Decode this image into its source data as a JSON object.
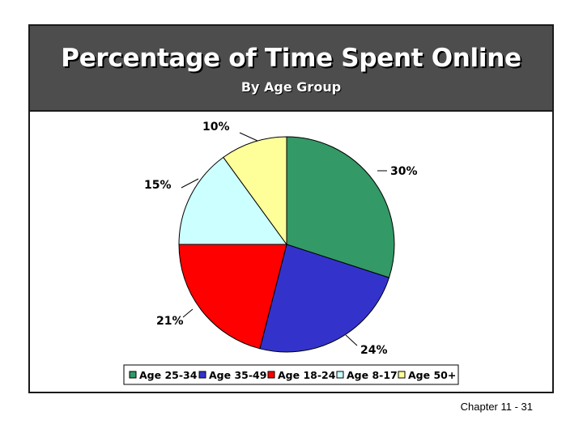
{
  "slide": {
    "title": "Percentage of Time Spent Online",
    "subtitle": "By Age Group",
    "footer": "Chapter 11 - 31"
  },
  "chart_data": {
    "type": "pie",
    "title": "Percentage of Time Spent Online",
    "subtitle": "By Age Group",
    "categories": [
      "Age 25-34",
      "Age 35-49",
      "Age 18-24",
      "Age 8-17",
      "Age 50+"
    ],
    "values": [
      30,
      24,
      21,
      15,
      10
    ],
    "labels": [
      "30%",
      "24%",
      "21%",
      "15%",
      "10%"
    ],
    "colors": [
      "#339966",
      "#3333cc",
      "#ff0000",
      "#ccffff",
      "#ffff99"
    ],
    "legend_position": "bottom",
    "start_angle": "12 o'clock",
    "direction": "clockwise"
  }
}
